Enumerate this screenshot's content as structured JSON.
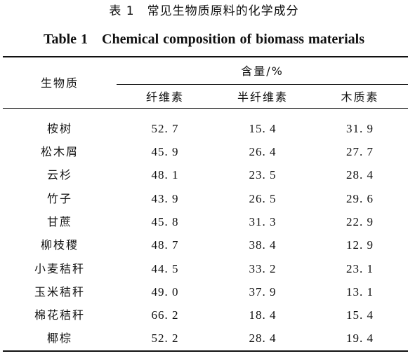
{
  "caption": {
    "zh": "表 1　常见生物质原料的化学成分",
    "en": "Table 1　Chemical composition of biomass materials"
  },
  "header": {
    "biomass": "生物质",
    "content": "含量/%",
    "columns": [
      "纤维素",
      "半纤维素",
      "木质素"
    ]
  },
  "rows": [
    {
      "name": "桉树",
      "values": [
        "52. 7",
        "15. 4",
        "31. 9"
      ]
    },
    {
      "name": "松木屑",
      "values": [
        "45. 9",
        "26. 4",
        "27. 7"
      ]
    },
    {
      "name": "云杉",
      "values": [
        "48. 1",
        "23. 5",
        "28. 4"
      ]
    },
    {
      "name": "竹子",
      "values": [
        "43. 9",
        "26. 5",
        "29. 6"
      ]
    },
    {
      "name": "甘蔗",
      "values": [
        "45. 8",
        "31. 3",
        "22. 9"
      ]
    },
    {
      "name": "柳枝稷",
      "values": [
        "48. 7",
        "38. 4",
        "12. 9"
      ]
    },
    {
      "name": "小麦秸秆",
      "values": [
        "44. 5",
        "33. 2",
        "23. 1"
      ]
    },
    {
      "name": "玉米秸秆",
      "values": [
        "49. 0",
        "37. 9",
        "13. 1"
      ]
    },
    {
      "name": "棉花秸秆",
      "values": [
        "66. 2",
        "18. 4",
        "15. 4"
      ]
    },
    {
      "name": "椰棕",
      "values": [
        "52. 2",
        "28. 4",
        "19. 4"
      ]
    }
  ]
}
